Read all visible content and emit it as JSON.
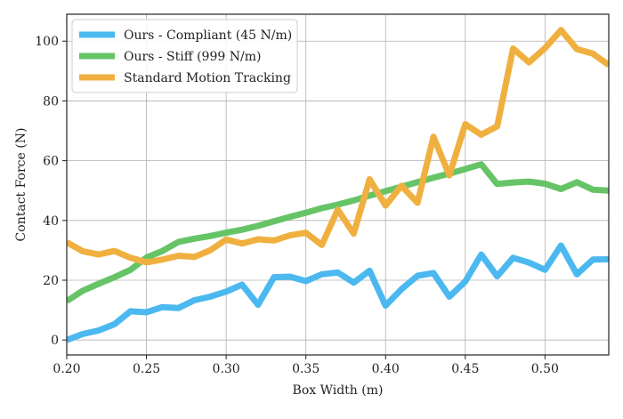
{
  "chart_data": {
    "type": "line",
    "title": "",
    "xlabel": "Box Width (m)",
    "ylabel": "Contact Force (N)",
    "xlim": [
      0.2,
      0.54
    ],
    "ylim": [
      -5,
      109
    ],
    "xticks": [
      0.2,
      0.25,
      0.3,
      0.35,
      0.4,
      0.45,
      0.5
    ],
    "xtick_labels": [
      "0.20",
      "0.25",
      "0.30",
      "0.35",
      "0.40",
      "0.45",
      "0.50"
    ],
    "yticks": [
      0,
      20,
      40,
      60,
      80,
      100
    ],
    "ytick_labels": [
      "0",
      "20",
      "40",
      "60",
      "80",
      "100"
    ],
    "grid": true,
    "legend_position": "top-left",
    "x": [
      0.2,
      0.21,
      0.22,
      0.23,
      0.24,
      0.25,
      0.26,
      0.27,
      0.28,
      0.29,
      0.3,
      0.31,
      0.32,
      0.33,
      0.34,
      0.35,
      0.36,
      0.37,
      0.38,
      0.39,
      0.4,
      0.41,
      0.42,
      0.43,
      0.44,
      0.45,
      0.46,
      0.47,
      0.48,
      0.49,
      0.5,
      0.51,
      0.52,
      0.53,
      0.54
    ],
    "series": [
      {
        "name": "Ours - Compliant (45 N/m)",
        "color": "#4cb8f0",
        "values": [
          0,
          2,
          3.2,
          5.3,
          9.6,
          9.3,
          11,
          10.7,
          13.3,
          14.5,
          16.2,
          18.5,
          11.8,
          21,
          21.2,
          19.7,
          22,
          22.6,
          19.2,
          23.2,
          11.5,
          17,
          21.5,
          22.4,
          14.5,
          19.6,
          28.6,
          21.3,
          27.5,
          25.9,
          23.5,
          31.6,
          22,
          26.9,
          27
        ]
      },
      {
        "name": "Ours - Stiff (999 N/m)",
        "color": "#66c466",
        "values": [
          13,
          16.5,
          18.8,
          21,
          23.5,
          27.6,
          29.8,
          32.8,
          33.9,
          34.8,
          35.9,
          36.9,
          38.2,
          39.7,
          41.2,
          42.6,
          44.1,
          45.3,
          46.7,
          48.3,
          49.8,
          51.3,
          52.8,
          54.3,
          55.7,
          57.2,
          58.8,
          52.2,
          52.7,
          53,
          52.3,
          50.5,
          52.8,
          50.3,
          50
        ]
      },
      {
        "name": "Standard Motion Tracking",
        "color": "#f0b040",
        "values": [
          32.7,
          29.7,
          28.6,
          29.8,
          27.5,
          26,
          26.9,
          28.2,
          27.8,
          30,
          33.6,
          32.3,
          33.7,
          33.3,
          35,
          35.9,
          31.8,
          43.6,
          35.6,
          53.8,
          45,
          51.6,
          45.9,
          68,
          55.1,
          72.2,
          68.7,
          71.5,
          97.5,
          92.9,
          97.7,
          103.7,
          97.3,
          95.8,
          92
        ]
      }
    ]
  }
}
